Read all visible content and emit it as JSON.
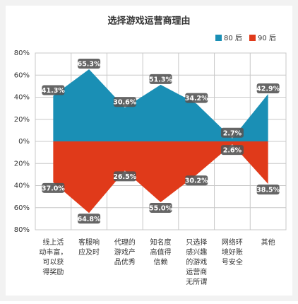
{
  "chart_data": {
    "type": "mirror-area",
    "title": "选择游戏运营商理由",
    "categories": [
      "线上活动丰富，可以获得奖励",
      "客服响应及时",
      "代理的游戏产品优秀",
      "知名度高值得信赖",
      "只选择感兴趣的游戏运营商无所谓",
      "网络环境好账号安全",
      "其他"
    ],
    "series": [
      {
        "name": "80 后",
        "color": "#1a8fb5",
        "values": [
          41.3,
          65.3,
          30.6,
          51.3,
          34.2,
          2.7,
          42.9
        ],
        "value_labels": [
          "41.3%",
          "65.3%",
          "30.6%",
          "51.3%",
          "34.2%",
          "2.7%",
          "42.9%"
        ]
      },
      {
        "name": "90 后",
        "color": "#e03a1a",
        "values": [
          -37.0,
          -64.8,
          -26.5,
          -55.0,
          -30.2,
          -2.6,
          -38.5
        ],
        "value_labels": [
          "37.0%",
          "64.8%",
          "26.5%",
          "55.0%",
          "30.2%",
          "2.6%",
          "38.5%"
        ]
      }
    ],
    "ylim": [
      -80,
      80
    ],
    "yticks": [
      {
        "value": -80,
        "label": "80%"
      },
      {
        "value": -60,
        "label": "60%"
      },
      {
        "value": -40,
        "label": "40%"
      },
      {
        "value": -20,
        "label": "20%"
      },
      {
        "value": 0,
        "label": "0%"
      },
      {
        "value": 20,
        "label": "20%"
      },
      {
        "value": 40,
        "label": "40%"
      },
      {
        "value": 60,
        "label": "60%"
      },
      {
        "value": 80,
        "label": "80%"
      }
    ],
    "grid": true,
    "legend": "top-right"
  }
}
